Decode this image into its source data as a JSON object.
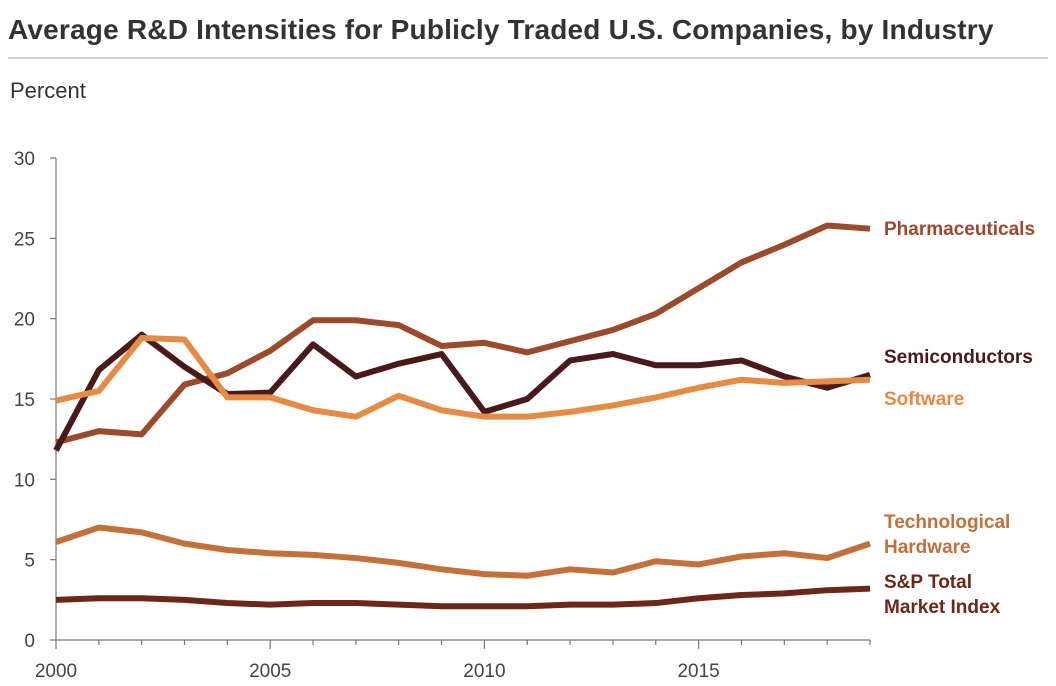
{
  "title": "Average R&D Intensities for Publicly Traded U.S. Companies, by Industry",
  "ylabel": "Percent",
  "chart_data": {
    "type": "line",
    "title": "Average R&D Intensities for Publicly Traded U.S. Companies, by Industry",
    "xlabel": "",
    "ylabel": "Percent",
    "xlim": [
      2000,
      2019
    ],
    "ylim": [
      0,
      30
    ],
    "xticks": [
      2000,
      2005,
      2010,
      2015
    ],
    "yticks": [
      0,
      5,
      10,
      15,
      20,
      25,
      30
    ],
    "grid": false,
    "x": [
      2000,
      2001,
      2002,
      2003,
      2004,
      2005,
      2006,
      2007,
      2008,
      2009,
      2010,
      2011,
      2012,
      2013,
      2014,
      2015,
      2016,
      2017,
      2018,
      2019
    ],
    "series": [
      {
        "name": "Pharmaceuticals",
        "label_lines": [
          "Pharmaceuticals"
        ],
        "color": "#9c4a2c",
        "values": [
          12.3,
          13.0,
          12.8,
          15.9,
          16.6,
          18.0,
          19.9,
          19.9,
          19.6,
          18.3,
          18.5,
          17.9,
          18.6,
          19.3,
          20.3,
          21.9,
          23.5,
          24.6,
          25.8,
          25.6
        ]
      },
      {
        "name": "Semiconductors",
        "label_lines": [
          "Semiconductors"
        ],
        "color": "#4a1a1a",
        "values": [
          11.8,
          16.8,
          19.0,
          17.0,
          15.3,
          15.4,
          18.4,
          16.4,
          17.2,
          17.8,
          14.2,
          15.0,
          17.4,
          17.8,
          17.1,
          17.1,
          17.4,
          16.4,
          15.7,
          16.5
        ]
      },
      {
        "name": "Software",
        "label_lines": [
          "Software"
        ],
        "color": "#e58b45",
        "values": [
          14.9,
          15.5,
          18.8,
          18.7,
          15.1,
          15.1,
          14.3,
          13.9,
          15.2,
          14.3,
          13.9,
          13.9,
          14.2,
          14.6,
          15.1,
          15.7,
          16.2,
          16.0,
          16.1,
          16.2
        ]
      },
      {
        "name": "Technological Hardware",
        "label_lines": [
          "Technological",
          "Hardware"
        ],
        "color": "#c4703a",
        "values": [
          6.1,
          7.0,
          6.7,
          6.0,
          5.6,
          5.4,
          5.3,
          5.1,
          4.8,
          4.4,
          4.1,
          4.0,
          4.4,
          4.2,
          4.9,
          4.7,
          5.2,
          5.4,
          5.1,
          6.0
        ]
      },
      {
        "name": "S&P Total Market Index",
        "label_lines": [
          "S&P Total",
          "Market Index"
        ],
        "color": "#6b2818",
        "values": [
          2.5,
          2.6,
          2.6,
          2.5,
          2.3,
          2.2,
          2.3,
          2.3,
          2.2,
          2.1,
          2.1,
          2.1,
          2.2,
          2.2,
          2.3,
          2.6,
          2.8,
          2.9,
          3.1,
          3.2
        ]
      }
    ]
  }
}
